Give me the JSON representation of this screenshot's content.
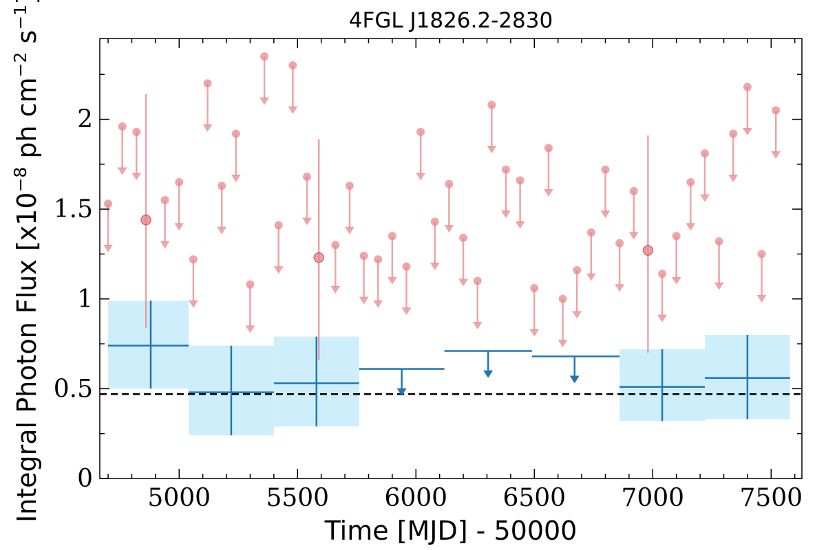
{
  "chart_data": {
    "type": "scatter",
    "title": "4FGL J1826.2-2830",
    "xlabel": "Time [MJD] - 50000",
    "ylabel_main": "Integral Photon Flux [x10",
    "ylabel_exp1": "−8",
    "ylabel_mid": " ph cm",
    "ylabel_exp2": "−2",
    "ylabel_s": " s",
    "ylabel_exp3": "−1",
    "ylabel_end": "]",
    "xlim": [
      4665,
      7630
    ],
    "ylim": [
      0,
      2.45
    ],
    "xticks": [
      5000,
      5500,
      6000,
      6500,
      7000,
      7500
    ],
    "xtick_labels": [
      "5000",
      "5500",
      "6000",
      "6500",
      "7000",
      "7500"
    ],
    "yticks": [
      0,
      0.5,
      1,
      1.5,
      2
    ],
    "ytick_labels": [
      "0",
      "0.5",
      "1",
      "1.5",
      "2"
    ],
    "reference_line": {
      "y": 0.47,
      "style": "dashed",
      "color": "#000000"
    },
    "colors": {
      "short_bins": "#e8888c",
      "long_bins": "#1f77b4",
      "long_band": "#cfeefc"
    },
    "short_bin_upper_limits": [
      {
        "x": 4700,
        "y": 1.53
      },
      {
        "x": 4760,
        "y": 1.96
      },
      {
        "x": 4820,
        "y": 1.93
      },
      {
        "x": 4940,
        "y": 1.55
      },
      {
        "x": 5000,
        "y": 1.65
      },
      {
        "x": 5060,
        "y": 1.22
      },
      {
        "x": 5120,
        "y": 2.2
      },
      {
        "x": 5180,
        "y": 1.63
      },
      {
        "x": 5240,
        "y": 1.92
      },
      {
        "x": 5300,
        "y": 1.08
      },
      {
        "x": 5360,
        "y": 2.35
      },
      {
        "x": 5420,
        "y": 1.41
      },
      {
        "x": 5480,
        "y": 2.3
      },
      {
        "x": 5540,
        "y": 1.68
      },
      {
        "x": 5660,
        "y": 1.3
      },
      {
        "x": 5720,
        "y": 1.63
      },
      {
        "x": 5780,
        "y": 1.24
      },
      {
        "x": 5840,
        "y": 1.22
      },
      {
        "x": 5900,
        "y": 1.35
      },
      {
        "x": 5960,
        "y": 1.18
      },
      {
        "x": 6020,
        "y": 1.93
      },
      {
        "x": 6080,
        "y": 1.43
      },
      {
        "x": 6140,
        "y": 1.64
      },
      {
        "x": 6200,
        "y": 1.34
      },
      {
        "x": 6260,
        "y": 1.1
      },
      {
        "x": 6320,
        "y": 2.08
      },
      {
        "x": 6380,
        "y": 1.72
      },
      {
        "x": 6440,
        "y": 1.66
      },
      {
        "x": 6500,
        "y": 1.06
      },
      {
        "x": 6560,
        "y": 1.84
      },
      {
        "x": 6620,
        "y": 1.0
      },
      {
        "x": 6680,
        "y": 1.16
      },
      {
        "x": 6740,
        "y": 1.37
      },
      {
        "x": 6800,
        "y": 1.72
      },
      {
        "x": 6860,
        "y": 1.31
      },
      {
        "x": 6920,
        "y": 1.6
      },
      {
        "x": 7040,
        "y": 1.14
      },
      {
        "x": 7100,
        "y": 1.35
      },
      {
        "x": 7160,
        "y": 1.65
      },
      {
        "x": 7220,
        "y": 1.81
      },
      {
        "x": 7280,
        "y": 1.32
      },
      {
        "x": 7340,
        "y": 1.92
      },
      {
        "x": 7400,
        "y": 2.18
      },
      {
        "x": 7460,
        "y": 1.25
      },
      {
        "x": 7520,
        "y": 2.05
      }
    ],
    "short_bin_detections": [
      {
        "x": 4860,
        "y": 1.44,
        "ylow": 0.84,
        "yhigh": 2.14
      },
      {
        "x": 5590,
        "y": 1.23,
        "ylow": 0.66,
        "yhigh": 1.89
      },
      {
        "x": 6980,
        "y": 1.27,
        "ylow": 0.7,
        "yhigh": 1.91
      }
    ],
    "long_bin_detections": [
      {
        "x0": 4700,
        "x1": 5040,
        "x": 4880,
        "y": 0.74,
        "ylow": 0.5,
        "yhigh": 0.99
      },
      {
        "x0": 5040,
        "x1": 5400,
        "x": 5220,
        "y": 0.48,
        "ylow": 0.24,
        "yhigh": 0.74
      },
      {
        "x0": 5400,
        "x1": 5760,
        "x": 5580,
        "y": 0.53,
        "ylow": 0.29,
        "yhigh": 0.79
      },
      {
        "x0": 6860,
        "x1": 7220,
        "x": 7040,
        "y": 0.51,
        "ylow": 0.32,
        "yhigh": 0.72
      },
      {
        "x0": 7220,
        "x1": 7580,
        "x": 7400,
        "y": 0.56,
        "ylow": 0.33,
        "yhigh": 0.8
      }
    ],
    "long_bin_upper_limits": [
      {
        "x0": 5760,
        "x1": 6120,
        "x": 5940,
        "y": 0.61
      },
      {
        "x0": 6120,
        "x1": 6490,
        "x": 6305,
        "y": 0.71
      },
      {
        "x0": 6490,
        "x1": 6860,
        "x": 6670,
        "y": 0.68
      }
    ]
  }
}
